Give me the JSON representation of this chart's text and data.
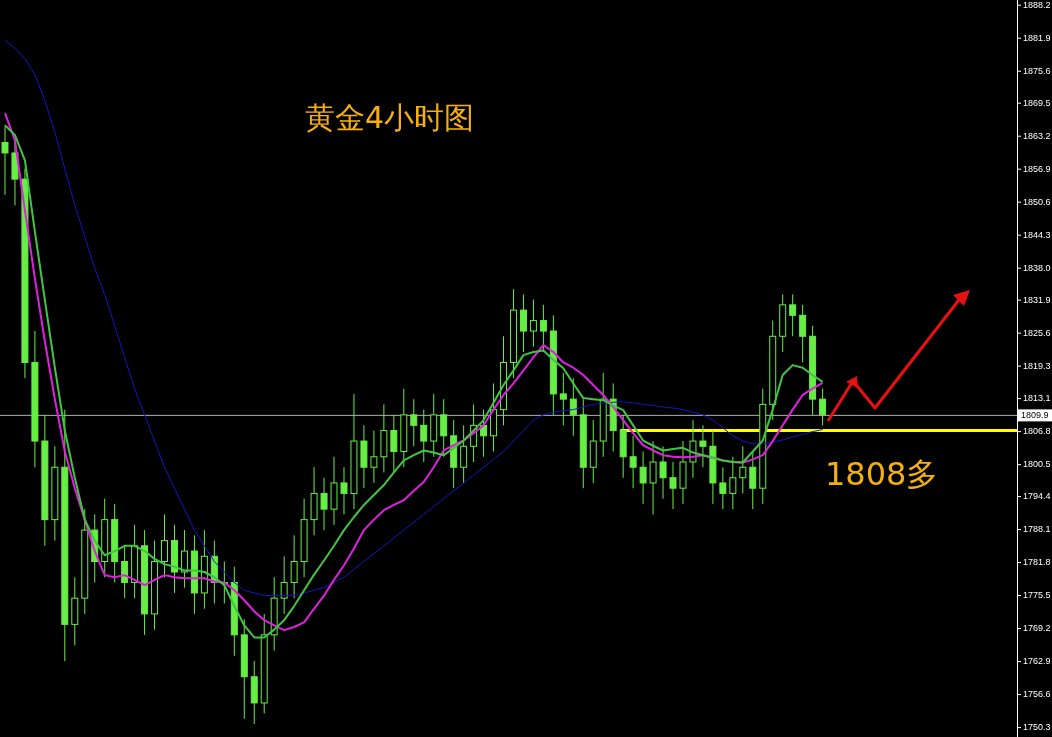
{
  "chart_data": {
    "type": "candlestick",
    "title": "黄金4小时图",
    "annotations": [
      "1808多"
    ],
    "categories": [
      null,
      null,
      null,
      null,
      null,
      null,
      null,
      null,
      null,
      null,
      null,
      null,
      null,
      null,
      null,
      null,
      null,
      null,
      null,
      null,
      null,
      null,
      null,
      null,
      null,
      null,
      null,
      null,
      null,
      null,
      null,
      null,
      null,
      null,
      null,
      null,
      null,
      null,
      null,
      null,
      null,
      null,
      null,
      null,
      null,
      null,
      null,
      null,
      null,
      null,
      null,
      null,
      null,
      null,
      null,
      null,
      null,
      null,
      null,
      null,
      null,
      null,
      null,
      null,
      null,
      null,
      null,
      null,
      null,
      null,
      null,
      null,
      null,
      null,
      null,
      null,
      null,
      null,
      null,
      null,
      null,
      null,
      null,
      null,
      null,
      null,
      null,
      null,
      null,
      null,
      null,
      null,
      null,
      null,
      null,
      null,
      null,
      null,
      null,
      null,
      null,
      null
    ],
    "color": "#66ee44",
    "ohlc": [
      [
        1862,
        1865,
        1852,
        1860
      ],
      [
        1860,
        1863,
        1850,
        1855
      ],
      [
        1855,
        1857,
        1817,
        1820
      ],
      [
        1820,
        1826,
        1800,
        1805
      ],
      [
        1805,
        1810,
        1785,
        1790
      ],
      [
        1790,
        1804,
        1786,
        1800
      ],
      [
        1800,
        1811,
        1763,
        1770
      ],
      [
        1770,
        1779,
        1766,
        1775
      ],
      [
        1775,
        1792,
        1772,
        1788
      ],
      [
        1788,
        1791,
        1778,
        1782
      ],
      [
        1782,
        1794,
        1779,
        1790
      ],
      [
        1790,
        1793,
        1778,
        1782
      ],
      [
        1782,
        1785,
        1775,
        1778
      ],
      [
        1778,
        1789,
        1775,
        1785
      ],
      [
        1785,
        1788,
        1768,
        1772
      ],
      [
        1772,
        1786,
        1769,
        1782
      ],
      [
        1782,
        1791,
        1779,
        1786
      ],
      [
        1786,
        1789,
        1776,
        1780
      ],
      [
        1780,
        1788,
        1777,
        1784
      ],
      [
        1784,
        1787,
        1772,
        1776
      ],
      [
        1776,
        1788,
        1773,
        1783
      ],
      [
        1783,
        1786,
        1774,
        1778
      ],
      [
        1778,
        1782,
        1774,
        1778
      ],
      [
        1778,
        1781,
        1764,
        1768
      ],
      [
        1768,
        1771,
        1752,
        1760
      ],
      [
        1760,
        1763,
        1751,
        1755
      ],
      [
        1755,
        1772,
        1753,
        1768
      ],
      [
        1768,
        1779,
        1765,
        1775
      ],
      [
        1775,
        1783,
        1772,
        1778
      ],
      [
        1778,
        1787,
        1775,
        1782
      ],
      [
        1782,
        1794,
        1779,
        1790
      ],
      [
        1790,
        1800,
        1787,
        1795
      ],
      [
        1795,
        1798,
        1788,
        1792
      ],
      [
        1792,
        1802,
        1789,
        1797
      ],
      [
        1797,
        1800,
        1791,
        1795
      ],
      [
        1795,
        1814,
        1792,
        1805
      ],
      [
        1805,
        1808,
        1796,
        1800
      ],
      [
        1800,
        1807,
        1797,
        1802
      ],
      [
        1802,
        1812,
        1799,
        1807
      ],
      [
        1807,
        1810,
        1799,
        1803
      ],
      [
        1803,
        1815,
        1800,
        1810
      ],
      [
        1810,
        1813,
        1804,
        1808
      ],
      [
        1808,
        1811,
        1801,
        1805
      ],
      [
        1805,
        1814,
        1802,
        1810
      ],
      [
        1810,
        1813,
        1802,
        1806
      ],
      [
        1806,
        1809,
        1796,
        1800
      ],
      [
        1800,
        1808,
        1797,
        1804
      ],
      [
        1804,
        1812,
        1801,
        1808
      ],
      [
        1808,
        1811,
        1802,
        1806
      ],
      [
        1806,
        1816,
        1803,
        1811
      ],
      [
        1811,
        1825,
        1808,
        1820
      ],
      [
        1820,
        1834,
        1817,
        1830
      ],
      [
        1830,
        1833,
        1822,
        1826
      ],
      [
        1826,
        1832,
        1823,
        1828
      ],
      [
        1828,
        1831,
        1822,
        1826
      ],
      [
        1826,
        1829,
        1810,
        1814
      ],
      [
        1814,
        1818,
        1808,
        1813
      ],
      [
        1813,
        1817,
        1806,
        1810
      ],
      [
        1810,
        1813,
        1796,
        1800
      ],
      [
        1800,
        1809,
        1797,
        1805
      ],
      [
        1805,
        1818,
        1802,
        1813
      ],
      [
        1813,
        1816,
        1803,
        1807
      ],
      [
        1807,
        1810,
        1798,
        1802
      ],
      [
        1802,
        1806,
        1796,
        1800
      ],
      [
        1800,
        1803,
        1793,
        1797
      ],
      [
        1797,
        1805,
        1791,
        1801
      ],
      [
        1801,
        1804,
        1794,
        1798
      ],
      [
        1798,
        1801,
        1792,
        1796
      ],
      [
        1796,
        1805,
        1793,
        1801
      ],
      [
        1801,
        1809,
        1798,
        1805
      ],
      [
        1805,
        1808,
        1800,
        1804
      ],
      [
        1804,
        1807,
        1793,
        1797
      ],
      [
        1797,
        1800,
        1792,
        1795
      ],
      [
        1795,
        1802,
        1792,
        1798
      ],
      [
        1798,
        1804,
        1795,
        1800
      ],
      [
        1800,
        1803,
        1792,
        1796
      ],
      [
        1796,
        1815,
        1793,
        1812
      ],
      [
        1812,
        1828,
        1809,
        1825
      ],
      [
        1825,
        1833,
        1822,
        1831
      ],
      [
        1831,
        1833,
        1825,
        1829
      ],
      [
        1829,
        1831,
        1820,
        1825
      ],
      [
        1825,
        1827,
        1810,
        1813
      ],
      [
        1813,
        1815,
        1808,
        1810
      ],
      null,
      null,
      null,
      null,
      null,
      null,
      null,
      null,
      null,
      null,
      null,
      null,
      null,
      null,
      null,
      null,
      null,
      null,
      null
    ],
    "series": [
      {
        "type": "line",
        "color": "#1414c8",
        "values": [
          1881.5,
          1880,
          1878,
          1875,
          1870,
          1864,
          1857,
          1850,
          1844,
          1838,
          1833,
          1827,
          1821,
          1815,
          1810,
          1805,
          1800,
          1796,
          1792,
          1788,
          1785,
          1782,
          1780,
          1778,
          1776.5,
          1776,
          1775.5,
          1775.5,
          1775.5,
          1775.5,
          1776,
          1776.5,
          1777,
          1778,
          1779,
          1780.5,
          1782,
          1783.5,
          1785,
          1786.5,
          1788,
          1789.5,
          1791,
          1792.5,
          1794,
          1795.5,
          1797,
          1798.5,
          1800,
          1801.5,
          1803,
          1805,
          1807,
          1809,
          1810,
          1810.5,
          1810.8,
          1811,
          1811.5,
          1812,
          1812.2,
          1812.4,
          1812.5,
          1812.3,
          1812,
          1811.8,
          1811.5,
          1811.3,
          1811,
          1810.5,
          1810,
          1809,
          1807.5,
          1806,
          1805,
          1804.5,
          1804.5,
          1804.8,
          1805.2,
          1805.8,
          1806.3,
          1806.8,
          1807.2,
          null,
          null,
          null,
          null,
          null,
          null,
          null,
          null,
          null,
          null,
          null,
          null,
          null,
          null,
          null,
          null,
          null,
          null,
          null
        ]
      },
      {
        "type": "line",
        "color": "#e020e0",
        "values": [
          1867.6,
          1862.4,
          1849,
          1836,
          1824,
          1813,
          1803,
          1796,
          1790,
          1784,
          1779.4,
          1779,
          1779.4,
          1778.5,
          1777.5,
          1778.5,
          1779.4,
          1779,
          1778.8,
          1778.8,
          1778.8,
          1778.2,
          1778,
          1776.5,
          1774.6,
          1772.5,
          1770.8,
          1769.8,
          1768.9,
          1769.5,
          1770.4,
          1773,
          1775.5,
          1778.5,
          1781.3,
          1784.5,
          1788,
          1790,
          1791.8,
          1792.8,
          1793.7,
          1795.5,
          1797.2,
          1800,
          1803.2,
          1804.2,
          1805.1,
          1806.5,
          1808,
          1811,
          1813.8,
          1816,
          1818.5,
          1821,
          1823.3,
          1822,
          1820,
          1819,
          1817.6,
          1815.7,
          1813.8,
          1811.5,
          1809,
          1806.5,
          1804.2,
          1803.2,
          1802.3,
          1802,
          1801.9,
          1802,
          1802.3,
          1801.8,
          1801.3,
          1801,
          1800.9,
          1801.5,
          1802.3,
          1805,
          1808,
          1811,
          1813.8,
          1815,
          1816.1,
          null,
          null,
          null,
          null,
          null,
          null,
          null,
          null,
          null,
          null,
          null,
          null,
          null,
          null,
          null,
          null,
          null,
          null,
          null
        ]
      },
      {
        "type": "line",
        "color": "#44c444",
        "values": [
          1865.3,
          1863.4,
          1858.6,
          1845,
          1831.9,
          1819,
          1807,
          1798,
          1790,
          1786,
          1783.2,
          1784,
          1785,
          1785,
          1784,
          1782.5,
          1781.5,
          1781,
          1780.3,
          1780.3,
          1780,
          1779,
          1777.5,
          1773.5,
          1769.8,
          1767.5,
          1767.5,
          1769,
          1770.8,
          1773.5,
          1776.5,
          1779.5,
          1782.2,
          1785,
          1788,
          1790.5,
          1792.8,
          1794.7,
          1796.6,
          1799,
          1801.3,
          1802.3,
          1803.2,
          1802.8,
          1802.3,
          1803.7,
          1805.1,
          1807,
          1809,
          1812.3,
          1815.7,
          1818.5,
          1821.4,
          1822,
          1822.3,
          1820.5,
          1818.9,
          1816,
          1813.2,
          1813,
          1812.8,
          1811.8,
          1810.9,
          1808,
          1805.1,
          1804.1,
          1803.2,
          1803.5,
          1803.7,
          1802.8,
          1802.3,
          1801.8,
          1801.3,
          1801,
          1800.9,
          1803,
          1805.1,
          1811,
          1817.6,
          1819.5,
          1819,
          1817.6,
          1816.3,
          null,
          null,
          null,
          null,
          null,
          null,
          null,
          null,
          null,
          null,
          null,
          null,
          null,
          null,
          null,
          null,
          null,
          null,
          null
        ]
      }
    ],
    "ylim": [
      1748.5,
      1889.2
    ],
    "yticks": [
      1888.2,
      1881.9,
      1875.6,
      1869.5,
      1863.2,
      1856.9,
      1850.6,
      1844.3,
      {
        "value": 1838.0,
        "label": "1838.0"
      },
      1831.9,
      1825.6,
      1819.3,
      1813.1,
      1806.8,
      1800.5,
      1794.4,
      1788.1,
      1781.8,
      1775.5,
      1769.2,
      1762.9,
      1756.6,
      1750.3
    ],
    "ref_lines": [
      {
        "axis": "y",
        "value": 1809.9,
        "label": "1809.9",
        "color": "#b0b0b0"
      },
      {
        "axis": "y",
        "value": 1807,
        "color": "#ffff00"
      }
    ],
    "tick_labels": "y",
    "grid": false
  }
}
